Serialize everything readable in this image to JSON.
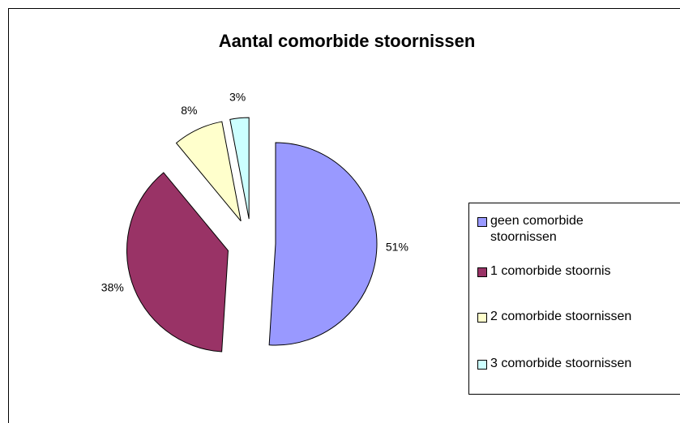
{
  "chart_data": {
    "type": "pie",
    "title": "Aantal comorbide stoornissen",
    "categories": [
      "geen comorbide stoornissen",
      "1 comorbide stoornis",
      "2 comorbide stoornissen",
      "3 comorbide stoornissen"
    ],
    "values": [
      51,
      38,
      8,
      3
    ],
    "value_labels": [
      "51%",
      "38%",
      "8%",
      "3%"
    ],
    "colors": [
      "#9999ff",
      "#993366",
      "#ffffcc",
      "#ccffff"
    ],
    "legend": "right"
  }
}
